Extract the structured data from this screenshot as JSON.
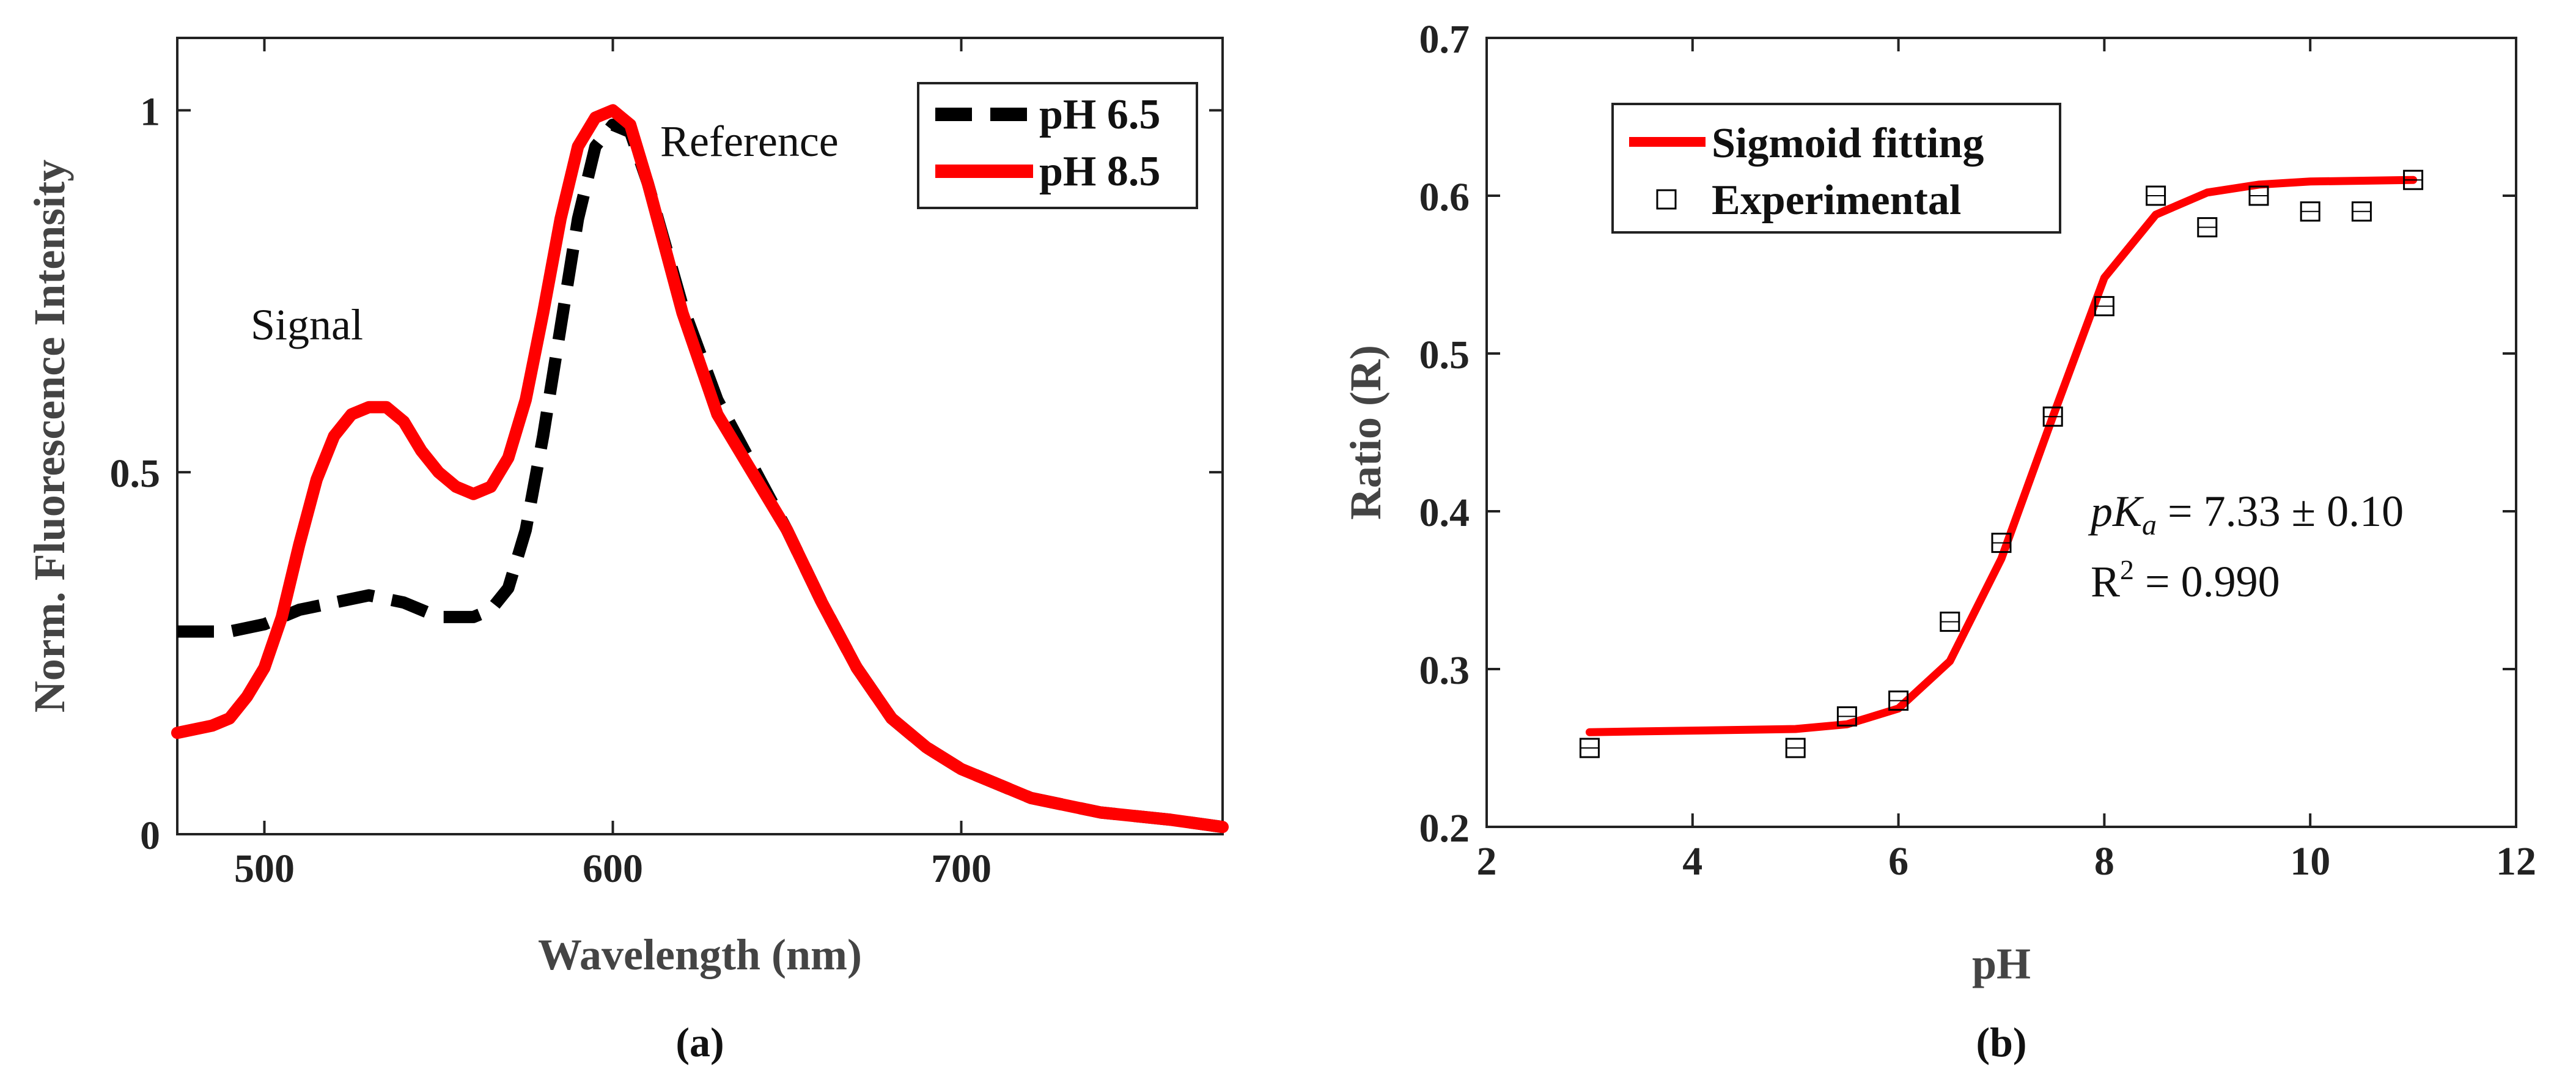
{
  "chart_data": [
    {
      "type": "line",
      "panel": "a",
      "caption": "(a)",
      "xlabel": "Wavelength (nm)",
      "ylabel": "Norm. Fluorescence Intensity",
      "xlim": [
        475,
        775
      ],
      "ylim": [
        0,
        1.1
      ],
      "xticks": [
        500,
        600,
        700
      ],
      "yticks": [
        0,
        0.5,
        1
      ],
      "xtick_labels": [
        "500",
        "600",
        "700"
      ],
      "ytick_labels": [
        "0",
        "0.5",
        "1"
      ],
      "legend_position": "top-right",
      "annotations": {
        "signal": "Signal",
        "reference": "Reference"
      },
      "series": [
        {
          "name": "pH 6.5",
          "style": "dashed",
          "color": "#000000",
          "x": [
            475,
            490,
            500,
            510,
            520,
            530,
            540,
            550,
            560,
            565,
            570,
            575,
            580,
            585,
            590,
            595,
            600,
            605,
            610,
            620,
            630,
            640,
            650,
            660,
            670,
            680,
            690,
            700,
            710,
            720,
            740,
            760,
            775
          ],
          "y": [
            0.28,
            0.28,
            0.29,
            0.31,
            0.32,
            0.33,
            0.32,
            0.3,
            0.3,
            0.31,
            0.34,
            0.42,
            0.55,
            0.7,
            0.85,
            0.95,
            0.98,
            0.97,
            0.9,
            0.73,
            0.6,
            0.51,
            0.42,
            0.32,
            0.23,
            0.16,
            0.12,
            0.09,
            0.07,
            0.05,
            0.03,
            0.02,
            0.01
          ]
        },
        {
          "name": "pH 8.5",
          "style": "solid",
          "color": "#ff0000",
          "x": [
            475,
            485,
            490,
            495,
            500,
            505,
            510,
            515,
            520,
            525,
            530,
            535,
            540,
            545,
            550,
            555,
            560,
            565,
            570,
            575,
            580,
            585,
            590,
            595,
            600,
            605,
            610,
            620,
            630,
            640,
            650,
            660,
            670,
            680,
            690,
            700,
            710,
            720,
            740,
            760,
            775
          ],
          "y": [
            0.14,
            0.15,
            0.16,
            0.19,
            0.23,
            0.3,
            0.4,
            0.49,
            0.55,
            0.58,
            0.59,
            0.59,
            0.57,
            0.53,
            0.5,
            0.48,
            0.47,
            0.48,
            0.52,
            0.6,
            0.72,
            0.85,
            0.95,
            0.99,
            1.0,
            0.98,
            0.9,
            0.72,
            0.58,
            0.5,
            0.42,
            0.32,
            0.23,
            0.16,
            0.12,
            0.09,
            0.07,
            0.05,
            0.03,
            0.02,
            0.01
          ]
        }
      ]
    },
    {
      "type": "scatter",
      "panel": "b",
      "caption": "(b)",
      "xlabel": "pH",
      "ylabel": "Ratio (R)",
      "xlim": [
        2,
        12
      ],
      "ylim": [
        0.2,
        0.7
      ],
      "xticks": [
        2,
        4,
        6,
        8,
        10,
        12
      ],
      "yticks": [
        0.2,
        0.3,
        0.4,
        0.5,
        0.6,
        0.7
      ],
      "xtick_labels": [
        "2",
        "4",
        "6",
        "8",
        "10",
        "12"
      ],
      "ytick_labels": [
        "0.2",
        "0.3",
        "0.4",
        "0.5",
        "0.6",
        "0.7"
      ],
      "legend_position": "top-left",
      "annotations": {
        "pka_label_p": "p",
        "pka_label_K": "K",
        "pka_label_sub": "a",
        "pka_value": " = 7.33 ± 0.10",
        "r2_label": "R",
        "r2_sup": "2",
        "r2_value": " = 0.990"
      },
      "series": [
        {
          "name": "Sigmoid fitting",
          "style": "solid-line",
          "color": "#ff0000",
          "x": [
            3,
            5,
            5.5,
            6,
            6.5,
            7,
            7.5,
            8,
            8.5,
            9,
            9.5,
            10,
            11
          ],
          "y": [
            0.26,
            0.262,
            0.265,
            0.275,
            0.305,
            0.37,
            0.46,
            0.548,
            0.588,
            0.602,
            0.607,
            0.609,
            0.61
          ]
        },
        {
          "name": "Experimental",
          "style": "square-markers",
          "color": "#000000",
          "x": [
            3,
            5,
            5.5,
            6,
            6.5,
            7,
            7.5,
            8,
            8.5,
            9,
            9.5,
            10,
            10.5,
            11
          ],
          "y": [
            0.25,
            0.25,
            0.27,
            0.28,
            0.33,
            0.38,
            0.46,
            0.53,
            0.6,
            0.58,
            0.6,
            0.59,
            0.59,
            0.61
          ]
        }
      ]
    }
  ]
}
